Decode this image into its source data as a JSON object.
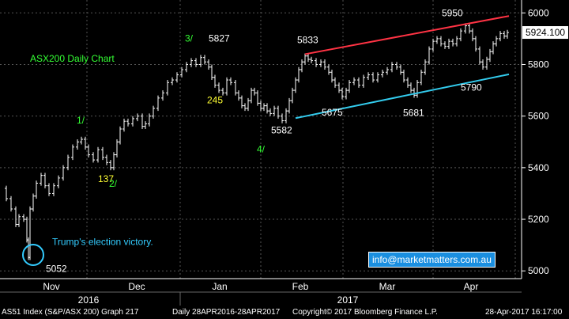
{
  "chart_data": {
    "type": "candlestick",
    "title": "ASX200 Daily Chart",
    "ylim": [
      4970,
      6050
    ],
    "y_ticks": [
      "5000",
      "5200",
      "5400",
      "5600",
      "5800",
      "6000"
    ],
    "last_price": "5924.100",
    "month_labels": [
      "Nov",
      "Dec",
      "Jan",
      "Feb",
      "Mar",
      "Apr"
    ],
    "year_labels": [
      "2016",
      "2017"
    ],
    "price_path": [
      [
        0,
        5320
      ],
      [
        6,
        5280
      ],
      [
        12,
        5240
      ],
      [
        18,
        5180
      ],
      [
        22,
        5210
      ],
      [
        28,
        5200
      ],
      [
        32,
        5120
      ],
      [
        34,
        5052
      ],
      [
        36,
        5240
      ],
      [
        40,
        5290
      ],
      [
        44,
        5340
      ],
      [
        50,
        5370
      ],
      [
        55,
        5330
      ],
      [
        60,
        5300
      ],
      [
        66,
        5330
      ],
      [
        72,
        5360
      ],
      [
        78,
        5400
      ],
      [
        84,
        5440
      ],
      [
        90,
        5480
      ],
      [
        96,
        5500
      ],
      [
        101,
        5510
      ],
      [
        106,
        5480
      ],
      [
        110,
        5450
      ],
      [
        116,
        5430
      ],
      [
        122,
        5470
      ],
      [
        128,
        5440
      ],
      [
        133,
        5420
      ],
      [
        138,
        5400
      ],
      [
        142,
        5450
      ],
      [
        146,
        5500
      ],
      [
        150,
        5550
      ],
      [
        155,
        5580
      ],
      [
        160,
        5570
      ],
      [
        166,
        5590
      ],
      [
        172,
        5600
      ],
      [
        178,
        5560
      ],
      [
        182,
        5570
      ],
      [
        187,
        5600
      ],
      [
        192,
        5630
      ],
      [
        198,
        5670
      ],
      [
        204,
        5690
      ],
      [
        210,
        5730
      ],
      [
        216,
        5740
      ],
      [
        222,
        5760
      ],
      [
        228,
        5780
      ],
      [
        234,
        5800
      ],
      [
        240,
        5815
      ],
      [
        246,
        5800
      ],
      [
        252,
        5827
      ],
      [
        257,
        5810
      ],
      [
        262,
        5790
      ],
      [
        266,
        5750
      ],
      [
        270,
        5720
      ],
      [
        275,
        5700
      ],
      [
        280,
        5690
      ],
      [
        285,
        5740
      ],
      [
        290,
        5730
      ],
      [
        296,
        5690
      ],
      [
        300,
        5670
      ],
      [
        304,
        5640
      ],
      [
        308,
        5630
      ],
      [
        312,
        5660
      ],
      [
        316,
        5700
      ],
      [
        320,
        5690
      ],
      [
        324,
        5650
      ],
      [
        328,
        5630
      ],
      [
        332,
        5640
      ],
      [
        336,
        5620
      ],
      [
        340,
        5610
      ],
      [
        345,
        5630
      ],
      [
        350,
        5600
      ],
      [
        355,
        5582
      ],
      [
        360,
        5620
      ],
      [
        364,
        5660
      ],
      [
        368,
        5700
      ],
      [
        372,
        5740
      ],
      [
        376,
        5780
      ],
      [
        380,
        5810
      ],
      [
        384,
        5833
      ],
      [
        388,
        5820
      ],
      [
        392,
        5815
      ],
      [
        398,
        5800
      ],
      [
        404,
        5810
      ],
      [
        409,
        5790
      ],
      [
        414,
        5770
      ],
      [
        418,
        5740
      ],
      [
        422,
        5720
      ],
      [
        427,
        5700
      ],
      [
        431,
        5675
      ],
      [
        436,
        5700
      ],
      [
        440,
        5730
      ],
      [
        446,
        5740
      ],
      [
        452,
        5720
      ],
      [
        458,
        5750
      ],
      [
        464,
        5760
      ],
      [
        470,
        5740
      ],
      [
        476,
        5760
      ],
      [
        482,
        5770
      ],
      [
        488,
        5780
      ],
      [
        494,
        5800
      ],
      [
        500,
        5790
      ],
      [
        505,
        5770
      ],
      [
        509,
        5740
      ],
      [
        514,
        5720
      ],
      [
        518,
        5700
      ],
      [
        522,
        5681
      ],
      [
        526,
        5730
      ],
      [
        531,
        5770
      ],
      [
        536,
        5810
      ],
      [
        541,
        5860
      ],
      [
        546,
        5890
      ],
      [
        551,
        5900
      ],
      [
        556,
        5880
      ],
      [
        561,
        5870
      ],
      [
        566,
        5890
      ],
      [
        571,
        5880
      ],
      [
        576,
        5900
      ],
      [
        581,
        5930
      ],
      [
        587,
        5950
      ],
      [
        592,
        5930
      ],
      [
        596,
        5900
      ],
      [
        600,
        5860
      ],
      [
        605,
        5810
      ],
      [
        609,
        5790
      ],
      [
        614,
        5820
      ],
      [
        618,
        5850
      ],
      [
        622,
        5880
      ],
      [
        626,
        5900
      ],
      [
        631,
        5920
      ],
      [
        636,
        5910
      ],
      [
        640,
        5924
      ]
    ],
    "upper_trend": [
      [
        384,
        5840
      ],
      [
        642,
        5988
      ]
    ],
    "lower_trend": [
      [
        372,
        5592
      ],
      [
        642,
        5762
      ]
    ],
    "annotations": [
      {
        "text": "5827",
        "x": 252,
        "y": 5827,
        "color": "#ffffff"
      },
      {
        "text": "3/",
        "x": 252,
        "y": 5827,
        "color": "#33ff33"
      },
      {
        "text": "5833",
        "x": 384,
        "y": 5833,
        "color": "#ffffff"
      },
      {
        "text": "5950",
        "x": 587,
        "y": 5950,
        "color": "#ffffff"
      },
      {
        "text": "5790",
        "x": 609,
        "y": 5790,
        "color": "#ffffff"
      },
      {
        "text": "5675",
        "x": 431,
        "y": 5675,
        "color": "#ffffff"
      },
      {
        "text": "5681",
        "x": 522,
        "y": 5681,
        "color": "#ffffff"
      },
      {
        "text": "5582",
        "x": 355,
        "y": 5582,
        "color": "#ffffff"
      },
      {
        "text": "4/",
        "x": 355,
        "y": 5582,
        "color": "#33ff33"
      },
      {
        "text": "245",
        "x": 290,
        "y": 5730,
        "color": "#ffff33"
      },
      {
        "text": "1/",
        "x": 101,
        "y": 5510,
        "color": "#33ff33"
      },
      {
        "text": "137",
        "x": 116,
        "y": 5430,
        "color": "#ffff33"
      },
      {
        "text": "2/",
        "x": 138,
        "y": 5400,
        "color": "#33ff33"
      },
      {
        "text": "5052",
        "x": 34,
        "y": 5052,
        "color": "#ffffff"
      },
      {
        "text": "Trump's election victory.",
        "x": 34,
        "y": 5052,
        "color": "#33ccff"
      }
    ]
  },
  "contact": {
    "email": "info@marketmatters.com.au"
  },
  "footer": {
    "index": "AS51 Index (S&P/ASX 200) Graph 217",
    "range": "Daily 28APR2016-28APR2017",
    "copyright": "Copyright© 2017 Bloomberg Finance L.P.",
    "timestamp": "28-Apr-2017 16:17:00"
  }
}
